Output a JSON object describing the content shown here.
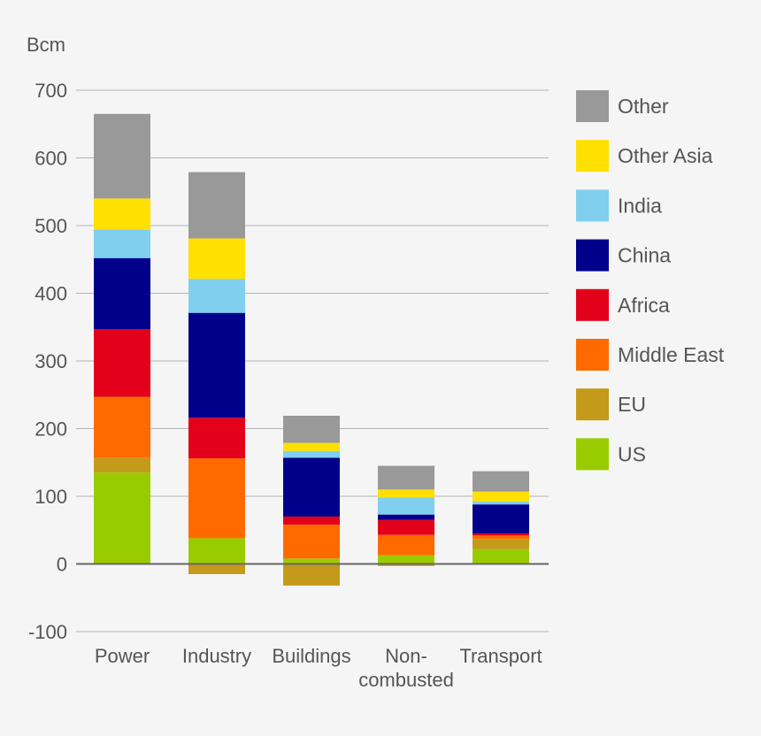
{
  "chart_data": {
    "type": "bar",
    "stacked": true,
    "ylabel": "Bcm",
    "ylim": [
      -100,
      700
    ],
    "yticks": [
      -100,
      0,
      100,
      200,
      300,
      400,
      500,
      600,
      700
    ],
    "grid": true,
    "legend_position": "right",
    "categories": [
      [
        "Power"
      ],
      [
        "Industry"
      ],
      [
        "Buildings"
      ],
      [
        "Non-",
        "combusted"
      ],
      [
        "Transport"
      ]
    ],
    "series": [
      {
        "name": "US",
        "color": "#99cc00",
        "values": [
          135,
          38,
          8,
          13,
          22
        ]
      },
      {
        "name": "EU",
        "color": "#c49a1a",
        "values": [
          22,
          -15,
          -32,
          -3,
          15
        ]
      },
      {
        "name": "Middle East",
        "color": "#ff6a00",
        "values": [
          90,
          118,
          50,
          30,
          5
        ]
      },
      {
        "name": "Africa",
        "color": "#e3001b",
        "values": [
          100,
          60,
          12,
          22,
          3
        ]
      },
      {
        "name": "China",
        "color": "#00008b",
        "values": [
          105,
          155,
          87,
          8,
          43
        ]
      },
      {
        "name": "India",
        "color": "#80cfee",
        "values": [
          42,
          50,
          10,
          25,
          4
        ]
      },
      {
        "name": "Other Asia",
        "color": "#ffe000",
        "values": [
          46,
          60,
          12,
          12,
          15
        ]
      },
      {
        "name": "Other",
        "color": "#999999",
        "values": [
          125,
          98,
          40,
          35,
          30
        ]
      }
    ]
  }
}
